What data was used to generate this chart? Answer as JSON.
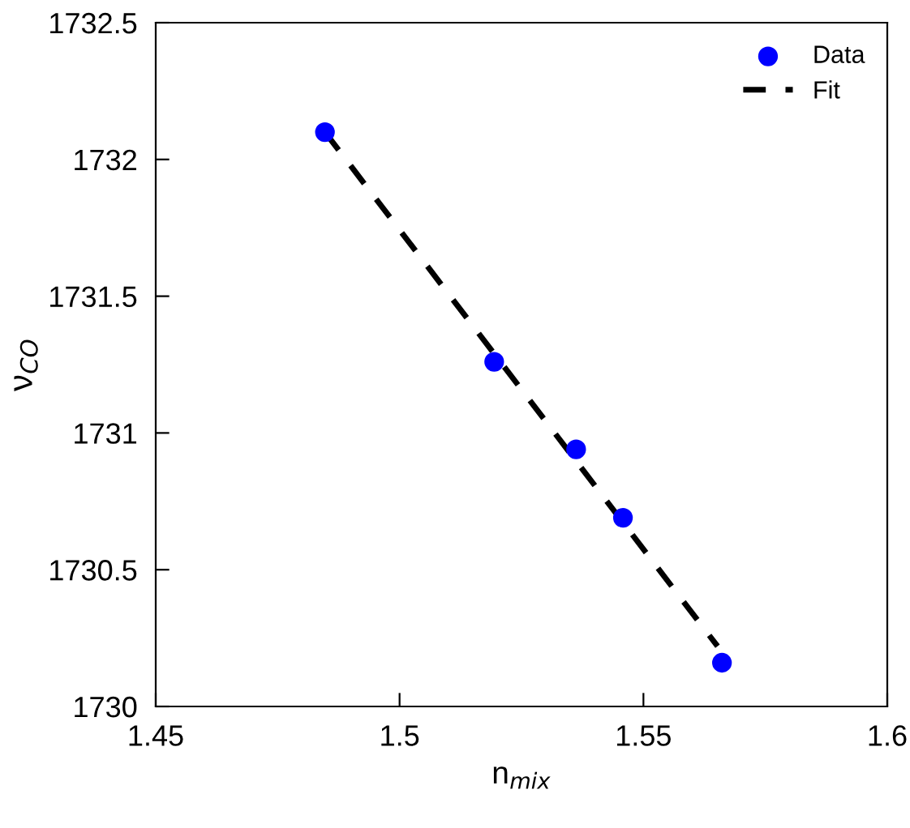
{
  "chart_data": {
    "type": "scatter",
    "xlabel": "n$_{mix}$",
    "ylabel": "ν$_{CO}$",
    "x": [
      1.4847,
      1.5194,
      1.5362,
      1.5458,
      1.5661
    ],
    "series": [
      {
        "name": "Data",
        "color": "#0000ff",
        "marker": "circle",
        "values": [
          1732.1,
          1731.26,
          1730.94,
          1730.69,
          1730.16
        ]
      },
      {
        "name": "Fit",
        "type": "line",
        "color": "#000000",
        "line_style": "dashed",
        "marker": "none",
        "x": [
          1.4847,
          1.5652
        ],
        "values": [
          1732.1,
          1730.22
        ]
      }
    ],
    "xlim": [
      1.45,
      1.6
    ],
    "xticks": [
      1.45,
      1.5,
      1.55,
      1.6
    ],
    "ylim": [
      1730,
      1732.5
    ],
    "yticks": [
      1730,
      1730.5,
      1731,
      1731.5,
      1732,
      1732.5
    ],
    "grid": false,
    "legend": "top right"
  }
}
